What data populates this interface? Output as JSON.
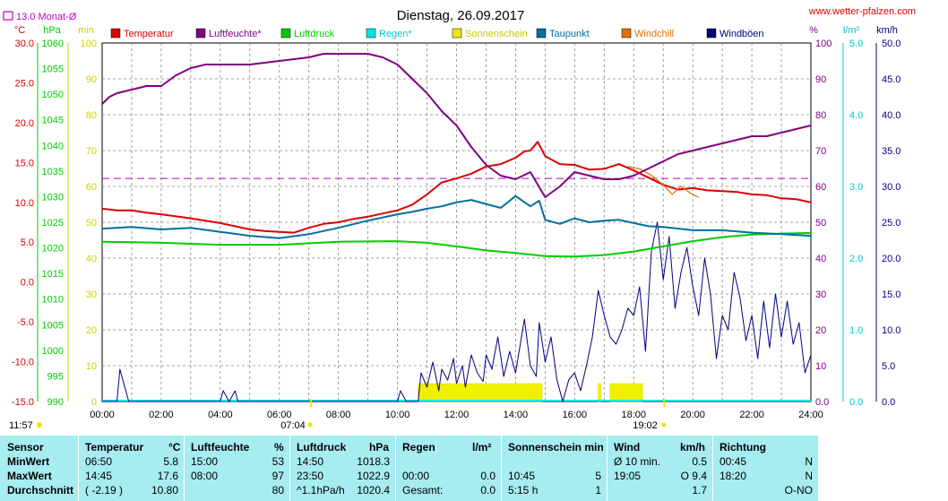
{
  "header": {
    "title": "Dienstag, 26.09.2017",
    "website": "www.wetter-pfalzen.com",
    "month_avg_label": "13.0 Monat-Ø"
  },
  "units": {
    "left": [
      "°C",
      "hPa",
      "min"
    ],
    "right": [
      "%",
      "l/m²",
      "km/h"
    ]
  },
  "legend": [
    {
      "label": "Temperatur",
      "color": "#dd0000"
    },
    {
      "label": "Luftfeuchte*",
      "color": "#800080"
    },
    {
      "label": "Luftdruck",
      "color": "#00cc00"
    },
    {
      "label": "Regen*",
      "color": "#00e5e5"
    },
    {
      "label": "Sonnenschein",
      "color": "#e8e800"
    },
    {
      "label": "Taupunkt",
      "color": "#0070a0"
    },
    {
      "label": "Windchill",
      "color": "#e07000"
    },
    {
      "label": "Windböen",
      "color": "#000080"
    }
  ],
  "sun": {
    "rise": "07:04",
    "set": "19:02"
  },
  "footer_time": "11:57",
  "chart_data": {
    "type": "line",
    "title": "Dienstag, 26.09.2017",
    "x_range_hours": [
      0,
      24
    ],
    "x_tick_labels": [
      "00:00",
      "02:00",
      "04:00",
      "06:00",
      "08:00",
      "10:00",
      "12:00",
      "14:00",
      "16:00",
      "18:00",
      "20:00",
      "22:00",
      "24:00"
    ],
    "axes": {
      "temperature_c": {
        "range": [
          -15,
          30
        ],
        "ticks": [
          "30.0",
          "25.0",
          "20.0",
          "15.0",
          "10.0",
          "5.0",
          "0.0",
          "-5.0",
          "-10.0",
          "-15.0"
        ]
      },
      "pressure_hpa": {
        "range": [
          990,
          1060
        ],
        "ticks": [
          "1060",
          "1055",
          "1050",
          "1045",
          "1040",
          "1035",
          "1030",
          "1025",
          "1020",
          "1015",
          "1010",
          "1005",
          "1000",
          "995",
          "990"
        ]
      },
      "sunshine_min": {
        "range": [
          0,
          100
        ],
        "ticks": [
          "100",
          "90",
          "80",
          "70",
          "60",
          "50",
          "40",
          "30",
          "20",
          "10",
          "0"
        ]
      },
      "humidity_pct": {
        "range": [
          0,
          100
        ],
        "ticks": [
          "100",
          "90",
          "80",
          "70",
          "60",
          "50",
          "40",
          "30",
          "20",
          "10",
          "0.0"
        ]
      },
      "rain_lm2": {
        "range": [
          0,
          5
        ],
        "ticks": [
          "5.0",
          "4.0",
          "3.0",
          "2.0",
          "1.0",
          "0.0"
        ]
      },
      "wind_kmh": {
        "range": [
          0,
          50
        ],
        "ticks": [
          "50.0",
          "45.0",
          "40.0",
          "35.0",
          "30.0",
          "25.0",
          "20.0",
          "15.0",
          "10.0",
          "5.0",
          "0.0"
        ]
      }
    },
    "month_avg_temp_c": 13.0,
    "series": [
      {
        "name": "Temperatur",
        "unit": "°C",
        "x": [
          0,
          0.5,
          1,
          1.5,
          2,
          3,
          4,
          5,
          5.5,
          6,
          6.5,
          7,
          7.5,
          8,
          8.5,
          9,
          9.5,
          10,
          10.5,
          11,
          11.5,
          12,
          12.5,
          13,
          13.5,
          14,
          14.3,
          14.5,
          14.75,
          15,
          15.5,
          16,
          16.5,
          17,
          17.5,
          18,
          18.5,
          19,
          19.5,
          20,
          20.5,
          21,
          21.5,
          22,
          22.5,
          23,
          23.5,
          24
        ],
        "values": [
          9.2,
          9.0,
          9.0,
          8.7,
          8.5,
          8.0,
          7.4,
          6.6,
          6.4,
          6.3,
          6.2,
          6.8,
          7.3,
          7.5,
          7.9,
          8.2,
          8.6,
          9.0,
          9.7,
          11.0,
          12.5,
          13.0,
          13.6,
          14.5,
          14.8,
          15.6,
          16.4,
          16.5,
          17.6,
          15.8,
          14.8,
          14.7,
          14.1,
          14.2,
          14.8,
          14.0,
          13.1,
          12.2,
          11.6,
          11.8,
          11.5,
          11.4,
          11.3,
          11.0,
          10.9,
          10.5,
          10.4,
          10.0
        ]
      },
      {
        "name": "Luftfeuchte*",
        "unit": "%",
        "x": [
          0,
          0.25,
          0.5,
          1,
          1.5,
          2,
          2.5,
          3,
          3.5,
          4,
          5,
          6,
          7,
          7.5,
          8,
          8.5,
          9,
          9.5,
          10,
          10.5,
          11,
          11.5,
          12,
          12.5,
          13,
          13.5,
          14,
          14.5,
          15,
          15.5,
          16,
          16.5,
          17,
          17.5,
          18,
          18.5,
          19,
          19.5,
          20,
          20.5,
          21,
          21.5,
          22,
          22.5,
          23,
          23.5,
          24
        ],
        "values": [
          83,
          85,
          86,
          87,
          88,
          88,
          91,
          93,
          94,
          94,
          94,
          95,
          96,
          97,
          97,
          97,
          97,
          96,
          94,
          90,
          86,
          81,
          77,
          71,
          66,
          63,
          62,
          64,
          57,
          60,
          64,
          63,
          62,
          62,
          63,
          65,
          67,
          69,
          70,
          71,
          72,
          73,
          74,
          74,
          75,
          76,
          77
        ]
      },
      {
        "name": "Luftdruck",
        "unit": "hPa",
        "x": [
          0,
          2,
          4,
          6,
          8,
          10,
          11,
          12,
          13,
          14,
          15,
          16,
          17,
          18,
          19,
          20,
          21,
          22,
          23,
          24
        ],
        "values": [
          1021.2,
          1021.0,
          1020.6,
          1020.6,
          1021.2,
          1021.3,
          1021.0,
          1020.3,
          1019.5,
          1019.0,
          1018.4,
          1018.3,
          1018.6,
          1019.3,
          1020.3,
          1021.3,
          1022.1,
          1022.6,
          1022.8,
          1022.9
        ]
      },
      {
        "name": "Taupunkt",
        "unit": "°C",
        "x": [
          0,
          1,
          2,
          3,
          4,
          5,
          6,
          7,
          8,
          9,
          10,
          10.5,
          11,
          11.5,
          12,
          12.5,
          13,
          13.5,
          14,
          14.5,
          14.8,
          15,
          15.5,
          16,
          16.5,
          17,
          17.5,
          18,
          18.5,
          19,
          20,
          21,
          22,
          23,
          24
        ],
        "values": [
          6.7,
          6.9,
          6.6,
          6.8,
          6.3,
          5.8,
          5.5,
          6.0,
          6.8,
          7.7,
          8.5,
          8.8,
          9.2,
          9.5,
          10.0,
          10.3,
          9.8,
          9.3,
          10.8,
          9.5,
          10.2,
          7.8,
          7.3,
          8.0,
          7.5,
          7.7,
          7.8,
          7.4,
          7.0,
          6.9,
          6.5,
          6.5,
          6.2,
          6.0,
          5.8
        ]
      },
      {
        "name": "Windchill",
        "unit": "°C",
        "x": [
          17.8,
          18.2,
          18.6,
          19.0,
          19.3,
          19.6,
          19.9,
          20.2
        ],
        "values": [
          14.5,
          14.2,
          13.4,
          12.2,
          11.0,
          12.0,
          11.2,
          10.6
        ]
      },
      {
        "name": "Windböen",
        "unit": "km/h",
        "x": [
          0,
          0.5,
          0.6,
          0.9,
          1,
          4,
          4.1,
          4.3,
          4.5,
          4.6,
          10,
          10.1,
          10.3,
          10.7,
          10.8,
          11,
          11.2,
          11.4,
          11.5,
          11.7,
          11.9,
          12,
          12.2,
          12.3,
          12.5,
          12.7,
          12.9,
          13,
          13.2,
          13.4,
          13.6,
          13.8,
          14,
          14.2,
          14.3,
          14.5,
          14.7,
          14.8,
          15,
          15.2,
          15.4,
          15.6,
          15.8,
          16,
          16.2,
          16.4,
          16.6,
          16.8,
          17,
          17.2,
          17.4,
          17.6,
          17.8,
          18,
          18.2,
          18.4,
          18.6,
          18.8,
          19,
          19.2,
          19.4,
          19.6,
          19.8,
          20,
          20.2,
          20.4,
          20.6,
          20.8,
          21,
          21.2,
          21.4,
          21.6,
          21.8,
          22,
          22.2,
          22.4,
          22.6,
          22.8,
          23,
          23.2,
          23.4,
          23.6,
          23.8,
          24
        ],
        "values": [
          0,
          0,
          4.5,
          0,
          0,
          0,
          1.5,
          0,
          1.5,
          0,
          0,
          1.5,
          0,
          0,
          4,
          2,
          5.5,
          1.5,
          4.5,
          3,
          6,
          2.5,
          5,
          2,
          6.5,
          4,
          2.8,
          6.5,
          4.5,
          9,
          3.5,
          7,
          4,
          9,
          11.5,
          5,
          3.5,
          11,
          5.5,
          9,
          3,
          0,
          3,
          4,
          1.5,
          5,
          9,
          15.5,
          12,
          9,
          8,
          10,
          13,
          12,
          16,
          7,
          21,
          25,
          17,
          23,
          13,
          18,
          21.5,
          16,
          12,
          20,
          15,
          6,
          12,
          10,
          18,
          14.5,
          8.5,
          12,
          6,
          14,
          7.5,
          15,
          9,
          14,
          8,
          11,
          4,
          6.5
        ]
      }
    ],
    "sunshine_blocks_hours": [
      [
        10.7,
        14.9
      ],
      [
        16.8,
        16.9
      ],
      [
        17.2,
        18.3
      ]
    ]
  },
  "table": {
    "headers": {
      "sensor": "Sensor",
      "temp": "Temperatur",
      "temp_unit": "°C",
      "hum": "Luftfeuchte",
      "hum_unit": "%",
      "press": "Luftdruck",
      "press_unit": "hPa",
      "rain": "Regen",
      "rain_unit": "l/m²",
      "sun": "Sonnenschein min",
      "wind": "Wind",
      "wind_unit": "km/h",
      "dir": "Richtung"
    },
    "rows": [
      {
        "label": "MinWert",
        "temp_time": "06:50",
        "temp_val": "5.8",
        "hum_time": "15:00",
        "hum_val": "53",
        "press_time": "14:50",
        "press_val": "1018.3",
        "rain_time": "",
        "rain_val": "",
        "sun_time": "",
        "sun_val": "",
        "wind_time": "Ø 10 min.",
        "wind_val": "0.5",
        "dir_time": "00:45",
        "dir_val": "N"
      },
      {
        "label": "MaxWert",
        "temp_time": "14:45",
        "temp_val": "17.6",
        "hum_time": "08:00",
        "hum_val": "97",
        "press_time": "23:50",
        "press_val": "1022.9",
        "rain_time": "00:00",
        "rain_val": "0.0",
        "sun_time": "10:45",
        "sun_val": "5",
        "wind_time": "19:05",
        "wind_val": "O 9.4",
        "dir_time": "18:20",
        "dir_val": "N"
      },
      {
        "label": "Durchschnitt",
        "temp_time": "( -2.19 )",
        "temp_val": "10.80",
        "hum_time": "",
        "hum_val": "80",
        "press_time": "^1.1hPa/h",
        "press_val": "1020.4",
        "rain_time": "Gesamt:",
        "rain_val": "0.0",
        "sun_time": "5:15 h",
        "sun_val": "1",
        "wind_time": "",
        "wind_val": "1.7",
        "dir_time": "",
        "dir_val": "O-NO"
      }
    ]
  }
}
